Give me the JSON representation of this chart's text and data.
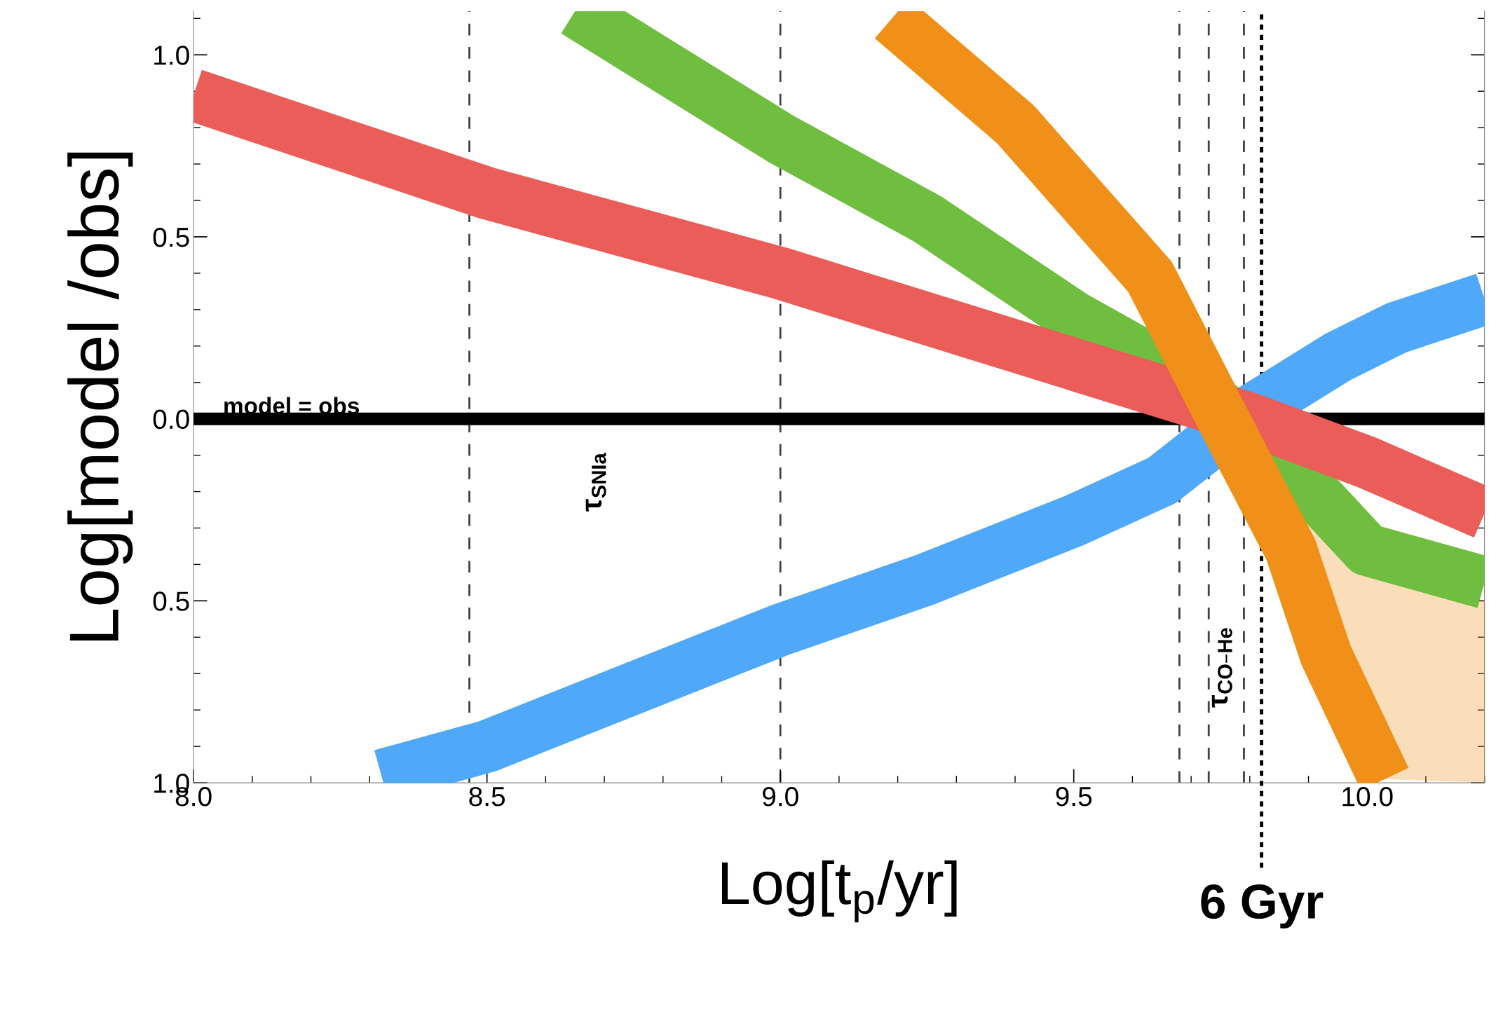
{
  "chart_data": {
    "type": "line",
    "xlabel": "Log[t$_{p}$/yr]",
    "ylabel": "Log[model /obs]",
    "xlim": [
      8.0,
      10.2
    ],
    "ylim": [
      -1.0,
      1.12
    ],
    "xticks": [
      {
        "value": 8,
        "label": "8.0"
      },
      8.5,
      {
        "value": 9,
        "label": "9.0"
      },
      9.5,
      {
        "value": 10,
        "label": "10.0"
      }
    ],
    "yticks": [
      {
        "value": -1,
        "label": "1.0"
      },
      {
        "value": -0.5,
        "label": "0.5"
      },
      {
        "value": 0,
        "label": "0.0"
      },
      0.5,
      {
        "value": 1,
        "label": "1.0"
      }
    ],
    "grid": false,
    "legend": false,
    "marker": "none",
    "line_style": "solid",
    "series": [
      {
        "color": "#50a8f8",
        "x": [
          8.32,
          8.5,
          9.0,
          9.25,
          9.5,
          9.65,
          9.8,
          9.95,
          10.05,
          10.2
        ],
        "values": [
          -0.98,
          -0.9,
          -0.58,
          -0.44,
          -0.28,
          -0.17,
          0.02,
          0.17,
          0.25,
          0.33
        ]
      },
      {
        "color": "#70be40",
        "x": [
          8.65,
          9.0,
          9.25,
          9.5,
          9.7,
          9.85,
          10.0,
          10.2
        ],
        "values": [
          1.12,
          0.77,
          0.55,
          0.28,
          0.1,
          -0.1,
          -0.36,
          -0.45
        ]
      },
      {
        "color": "#ea5d58",
        "x": [
          8.0,
          8.5,
          9.0,
          9.5,
          9.8,
          10.0,
          10.2
        ],
        "values": [
          0.89,
          0.62,
          0.4,
          0.15,
          0.0,
          -0.12,
          -0.26
        ]
      },
      {
        "color": "#f09018",
        "x": [
          9.19,
          9.4,
          9.63,
          9.77,
          9.87,
          9.93,
          10.03,
          10.2
        ],
        "values": [
          1.1,
          0.81,
          0.39,
          -0.05,
          -0.36,
          -0.65,
          -0.99,
          null
        ],
        "lower": [
          null,
          null,
          null,
          -0.05,
          -0.36,
          -0.65,
          -0.99,
          -1.0
        ],
        "upper": [
          null,
          null,
          null,
          -0.05,
          -0.2,
          -0.3,
          -0.4,
          -0.5
        ]
      }
    ],
    "ref_lines": [
      {
        "axis": "y",
        "value": 0.0,
        "label": "model = obs",
        "color": "#000000",
        "line_style": "solid"
      },
      {
        "axis": "x",
        "value": 8.47,
        "color": "#404040",
        "line_style": "dashed"
      },
      {
        "axis": "x",
        "value": 9.0,
        "color": "#404040",
        "line_style": "dashed"
      },
      {
        "axis": "x",
        "value": 9.68,
        "color": "#404040",
        "line_style": "dashed"
      },
      {
        "axis": "x",
        "value": 9.73,
        "color": "#404040",
        "line_style": "dashed"
      },
      {
        "axis": "x",
        "value": 9.79,
        "color": "#404040",
        "line_style": "dashed"
      },
      {
        "axis": "x",
        "value": 9.82,
        "label": "6 Gyr",
        "color": "#000000",
        "line_style": "dotted"
      }
    ],
    "annotations": [
      "τ$_{SNIa}$",
      "τ$_{CO–He}$"
    ]
  }
}
